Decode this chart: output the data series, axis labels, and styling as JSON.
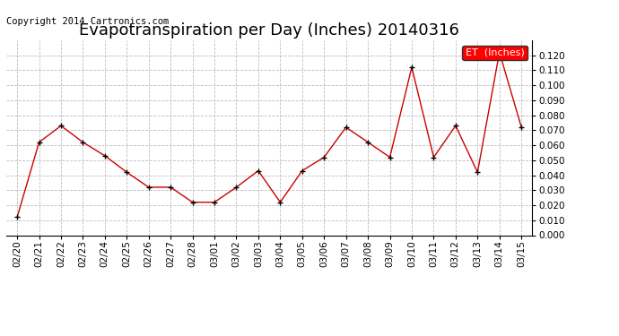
{
  "title": "Evapotranspiration per Day (Inches) 20140316",
  "copyright": "Copyright 2014 Cartronics.com",
  "legend_label": "ET  (Inches)",
  "legend_bg": "#ff0000",
  "legend_text_color": "#ffffff",
  "x_labels": [
    "02/20",
    "02/21",
    "02/22",
    "02/23",
    "02/24",
    "02/25",
    "02/26",
    "02/27",
    "02/28",
    "03/01",
    "03/02",
    "03/03",
    "03/04",
    "03/05",
    "03/06",
    "03/07",
    "03/08",
    "03/09",
    "03/10",
    "03/11",
    "03/12",
    "03/13",
    "03/14",
    "03/15"
  ],
  "y_values": [
    0.012,
    0.062,
    0.073,
    0.062,
    0.053,
    0.042,
    0.032,
    0.032,
    0.022,
    0.022,
    0.032,
    0.043,
    0.022,
    0.043,
    0.052,
    0.072,
    0.062,
    0.052,
    0.112,
    0.052,
    0.073,
    0.042,
    0.122,
    0.072
  ],
  "ylim": [
    0.0,
    0.13
  ],
  "yticks": [
    0.0,
    0.01,
    0.02,
    0.03,
    0.04,
    0.05,
    0.06,
    0.07,
    0.08,
    0.09,
    0.1,
    0.11,
    0.12
  ],
  "line_color": "#cc0000",
  "marker_color": "#000000",
  "bg_color": "#ffffff",
  "grid_color": "#bbbbbb",
  "title_fontsize": 13,
  "copyright_fontsize": 7.5,
  "tick_fontsize": 7.5,
  "legend_fontsize": 8
}
